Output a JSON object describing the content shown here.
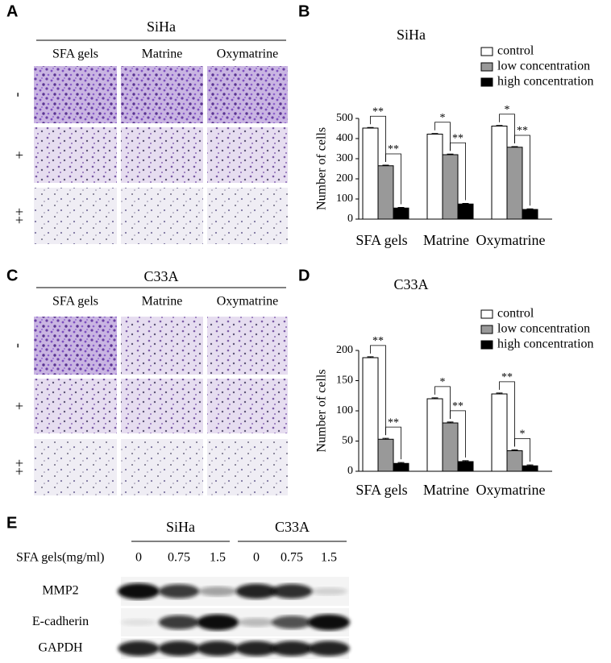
{
  "panels": [
    {
      "label": "A",
      "title": "SiHa",
      "columns": [
        "SFA gels",
        "Matrine",
        "Oxymatrine"
      ],
      "rows": [
        "-",
        "+",
        "++"
      ]
    },
    {
      "label": "C",
      "title": "C33A",
      "columns": [
        "SFA gels",
        "Matrine",
        "Oxymatrine"
      ],
      "rows": [
        "-",
        "+",
        "++"
      ]
    }
  ],
  "chart_data": [
    {
      "type": "bar",
      "label": "B",
      "title": "SiHa",
      "ylabel": "Number of cells",
      "categories": [
        "SFA gels",
        "Matrine",
        "Oxymatrine"
      ],
      "series": [
        {
          "name": "control",
          "color": "#ffffff",
          "values": [
            452,
            422,
            462
          ],
          "errors": [
            3,
            3,
            3
          ]
        },
        {
          "name": "low concentration",
          "color": "#999999",
          "values": [
            265,
            320,
            357
          ],
          "errors": [
            3,
            3,
            3
          ]
        },
        {
          "name": "high concentration",
          "color": "#000000",
          "values": [
            55,
            75,
            48
          ],
          "errors": [
            3,
            3,
            3
          ]
        }
      ],
      "annotations": [
        "**",
        "**",
        "*",
        "**",
        "*",
        "**"
      ],
      "ylim": [
        0,
        500
      ],
      "yticks": [
        0,
        100,
        200,
        300,
        400,
        500
      ],
      "legend": "upper right"
    },
    {
      "type": "bar",
      "label": "D",
      "title": "C33A",
      "ylabel": "Number of cells",
      "categories": [
        "SFA gels",
        "Matrine",
        "Oxymatrine"
      ],
      "series": [
        {
          "name": "control",
          "color": "#ffffff",
          "values": [
            188,
            120,
            128
          ],
          "errors": [
            1.5,
            1.5,
            1.5
          ]
        },
        {
          "name": "low concentration",
          "color": "#999999",
          "values": [
            53,
            80,
            34
          ],
          "errors": [
            1.5,
            1.5,
            1.5
          ]
        },
        {
          "name": "high concentration",
          "color": "#000000",
          "values": [
            13,
            16,
            9
          ],
          "errors": [
            1.5,
            1.5,
            1.5
          ]
        }
      ],
      "annotations": [
        "**",
        "**",
        "*",
        "**",
        "**",
        "*"
      ],
      "ylim": [
        0,
        200
      ],
      "yticks": [
        0,
        50,
        100,
        150,
        200
      ],
      "legend": "upper right"
    }
  ],
  "western_blot": {
    "label": "E",
    "groups": [
      "SiHa",
      "C33A"
    ],
    "dose_label": "SFA gels(mg/ml)",
    "doses": [
      0,
      0.75,
      1.5,
      0,
      0.75,
      1.5
    ],
    "proteins": [
      "MMP2",
      "E-cadherin",
      "GAPDH"
    ]
  }
}
